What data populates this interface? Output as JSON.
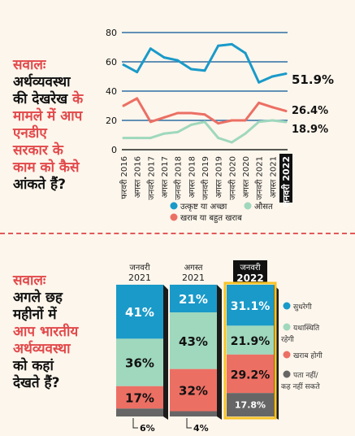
{
  "top_question": {
    "l1": "सवालः",
    "l2": "अर्थव्यवस्था",
    "l3a": "की देखरेख ",
    "l3b": "के",
    "l4": "मामले में आप",
    "l5": "एनडीए",
    "l6": "सरकार के",
    "l7": "काम को कैसे",
    "l8": "आंकते हैं?"
  },
  "bottom_question": {
    "l1": "सवालः",
    "l2": "अगले छह",
    "l3": "महीनों में",
    "l4": "आप भारतीय",
    "l5": "अर्थव्यवस्था",
    "l6": "को कहां",
    "l7": "देखते हैं?"
  },
  "colors": {
    "good": "#1a9ac9",
    "average": "#9fd8bd",
    "bad": "#ec6f64",
    "dontknow": "#666666",
    "highlight": "#f6c327"
  },
  "chart_data": [
    {
      "type": "line",
      "categories": [
        "फरवरी 2016",
        "अगस्त 2016",
        "जनवरी 2017",
        "अगस्त 2017",
        "जनवरी 2018",
        "अगस्त 2018",
        "जनवरी 2019",
        "अगस्त 2019",
        "जनवरी 2020",
        "अगस्त 2020",
        "जनवरी 2021",
        "अगस्त 2021",
        "जनवरी 2022"
      ],
      "ylim": [
        0,
        80
      ],
      "yticks": [
        "0",
        "20",
        "40",
        "60",
        "80"
      ],
      "series": [
        {
          "name": "उत्कृष्ट या अच्छा",
          "key": "good",
          "values": [
            58,
            53,
            69,
            63,
            61,
            55,
            54,
            71,
            72,
            66,
            46,
            50,
            51.9
          ]
        },
        {
          "name": "औसत",
          "key": "average",
          "values": [
            8,
            8,
            8,
            11,
            12,
            17,
            19,
            8,
            5,
            11,
            19,
            20,
            18.9
          ]
        },
        {
          "name": "खराब या बहुत खराब",
          "key": "bad",
          "values": [
            30,
            35,
            19,
            22,
            25,
            25,
            24,
            18,
            20,
            20,
            32,
            29,
            26.4
          ]
        }
      ],
      "end_labels": [
        "51.9%",
        "18.9%",
        "26.4%"
      ]
    },
    {
      "type": "bar",
      "stacked": true,
      "categories": [
        {
          "l1": "जनवरी",
          "l2": "2021"
        },
        {
          "l1": "अगस्त",
          "l2": "2021"
        },
        {
          "l1": "जनवरी",
          "l2": "2022"
        }
      ],
      "series": [
        {
          "name": "सुधरेगी",
          "key": "good",
          "values": [
            41,
            21,
            31.1
          ],
          "labels": [
            "41%",
            "21%",
            "31.1%"
          ]
        },
        {
          "name": "यथास्थिति रहेगी",
          "key": "average",
          "values": [
            36,
            43,
            21.9
          ],
          "labels": [
            "36%",
            "43%",
            "21.9%"
          ]
        },
        {
          "name": "खराब होगी",
          "key": "bad",
          "values": [
            17,
            32,
            29.2
          ],
          "labels": [
            "17%",
            "32%",
            "29.2%"
          ]
        },
        {
          "name": "पता नहीं/ कह नहीं सकते",
          "key": "dontknow",
          "values": [
            6,
            4,
            17.8
          ],
          "labels": [
            "6%",
            "4%",
            "17.8%"
          ]
        }
      ]
    }
  ]
}
